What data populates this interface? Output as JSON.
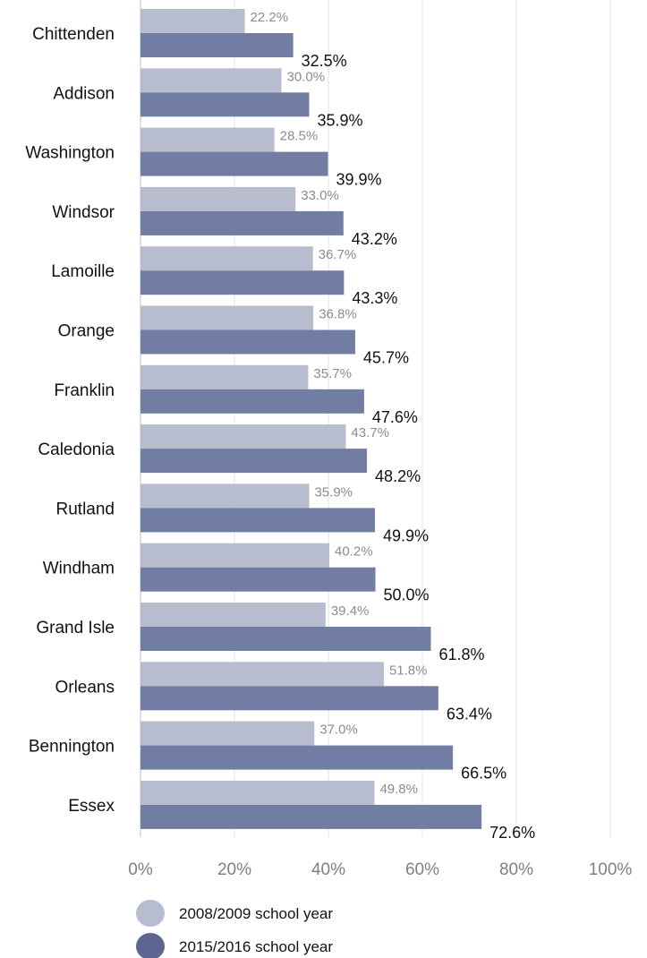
{
  "chart_data": {
    "type": "bar",
    "orientation": "horizontal",
    "categories": [
      "Chittenden",
      "Addison",
      "Washington",
      "Windsor",
      "Lamoille",
      "Orange",
      "Franklin",
      "Caledonia",
      "Rutland",
      "Windham",
      "Grand Isle",
      "Orleans",
      "Bennington",
      "Essex"
    ],
    "series": [
      {
        "name": "2008/2009 school year",
        "color": "#b8bccf",
        "values": [
          22.2,
          30.0,
          28.5,
          33.0,
          36.7,
          36.8,
          35.7,
          43.7,
          35.9,
          40.2,
          39.4,
          51.8,
          37.0,
          49.8
        ],
        "labels": [
          "22.2%",
          "30.0%",
          "28.5%",
          "33.0%",
          "36.7%",
          "36.8%",
          "35.7%",
          "43.7%",
          "35.9%",
          "40.2%",
          "39.4%",
          "51.8%",
          "37.0%",
          "49.8%"
        ]
      },
      {
        "name": "2015/2016 school year",
        "color": "#727da3",
        "values": [
          32.5,
          35.9,
          39.9,
          43.2,
          43.3,
          45.7,
          47.6,
          48.2,
          49.9,
          50.0,
          61.8,
          63.4,
          66.5,
          72.6
        ],
        "labels": [
          "32.5%",
          "35.9%",
          "39.9%",
          "43.2%",
          "43.3%",
          "45.7%",
          "47.6%",
          "48.2%",
          "49.9%",
          "50.0%",
          "61.8%",
          "63.4%",
          "66.5%",
          "72.6%"
        ]
      }
    ],
    "xlim": [
      0,
      100
    ],
    "xticks": [
      0,
      20,
      40,
      60,
      80,
      100
    ],
    "xtick_labels": [
      "0%",
      "20%",
      "40%",
      "60%",
      "80%",
      "100%"
    ],
    "grid": true,
    "legend_position": "bottom-left",
    "legend_marker_colors": [
      "#b8bccf",
      "#5d6690"
    ],
    "title": "",
    "xlabel": "",
    "ylabel": ""
  }
}
